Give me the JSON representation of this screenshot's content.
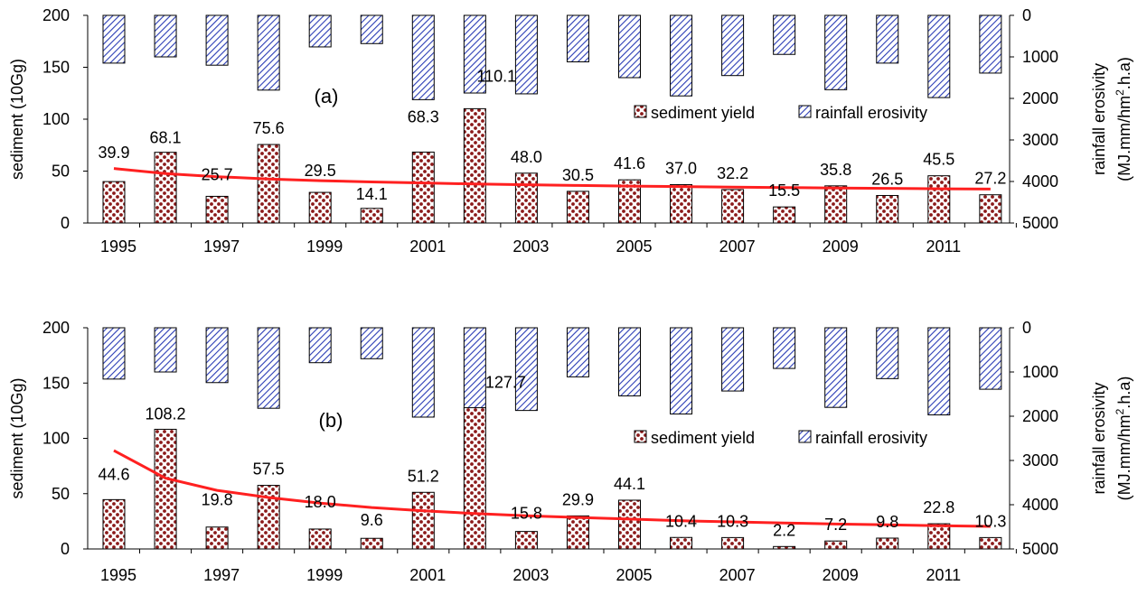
{
  "chart_data": [
    {
      "type": "bar",
      "panel_label": "(a)",
      "x": [
        1995,
        1996,
        1997,
        1998,
        1999,
        2000,
        2001,
        2002,
        2003,
        2004,
        2005,
        2006,
        2007,
        2008,
        2009,
        2010,
        2011,
        2012
      ],
      "x_tick_labels": [
        "1995",
        "1997",
        "1999",
        "2001",
        "2003",
        "2005",
        "2007",
        "2009",
        "2011"
      ],
      "series": [
        {
          "name": "sediment yield",
          "axis": "left",
          "style": "red dotted bars",
          "values": [
            39.9,
            68.1,
            25.7,
            75.6,
            29.5,
            14.1,
            68.3,
            110.1,
            48.0,
            30.5,
            41.6,
            37.0,
            32.2,
            15.5,
            35.8,
            26.5,
            45.5,
            27.2
          ],
          "labels": [
            "39.9",
            "68.1",
            "25.7",
            "75.6",
            "29.5",
            "14.1",
            "68.3",
            "110.1",
            "48.0",
            "30.5",
            "41.6",
            "37.0",
            "32.2",
            "15.5",
            "35.8",
            "26.5",
            "45.5",
            "27.2"
          ]
        },
        {
          "name": "rainfall erosivity",
          "axis": "right",
          "style": "blue hatched bars hanging from top",
          "values": [
            1150,
            1000,
            1200,
            1800,
            760,
            680,
            2030,
            1870,
            1890,
            1120,
            1500,
            1940,
            1450,
            940,
            1790,
            1150,
            1980,
            1390
          ]
        }
      ],
      "trendline": {
        "color": "#ff2020",
        "values": [
          52.5,
          47.6,
          44.6,
          42.4,
          40.8,
          39.6,
          38.6,
          37.6,
          36.9,
          36.2,
          35.6,
          35.1,
          34.6,
          34.2,
          33.7,
          33.4,
          33.0,
          32.7
        ]
      },
      "ylabel_left": "sediment (10Gg)",
      "ylabel_right": "rainfall erosivity",
      "ylabel_right_unit_pre": "(MJ.mm/hm",
      "ylabel_right_unit_sup": "2",
      "ylabel_right_unit_post": ".h.a)",
      "ylim_left": [
        0,
        200
      ],
      "ylim_right": [
        0,
        5000
      ],
      "right_axis_inverted": true,
      "yticks_left": [
        "0",
        "50",
        "100",
        "150",
        "200"
      ],
      "yticks_right": [
        "0",
        "1000",
        "2000",
        "3000",
        "4000",
        "5000"
      ],
      "legend_placement": "right, mid-height",
      "grid": false
    },
    {
      "type": "bar",
      "panel_label": "(b)",
      "x": [
        1995,
        1996,
        1997,
        1998,
        1999,
        2000,
        2001,
        2002,
        2003,
        2004,
        2005,
        2006,
        2007,
        2008,
        2009,
        2010,
        2011,
        2012
      ],
      "x_tick_labels": [
        "1995",
        "1997",
        "1999",
        "2001",
        "2003",
        "2005",
        "2007",
        "2009",
        "2011"
      ],
      "series": [
        {
          "name": "sediment yield",
          "axis": "left",
          "style": "red dotted bars",
          "values": [
            44.6,
            108.2,
            19.8,
            57.5,
            18.0,
            9.6,
            51.2,
            127.7,
            15.8,
            29.9,
            44.1,
            10.4,
            10.3,
            2.2,
            7.2,
            9.8,
            22.8,
            10.3
          ],
          "labels": [
            "44.6",
            "108.2",
            "19.8",
            "57.5",
            "18.0",
            "9.6",
            "51.2",
            "127.7",
            "15.8",
            "29.9",
            "44.1",
            "10.4",
            "10.3",
            "2.2",
            "7.2",
            "9.8",
            "22.8",
            "10.3"
          ]
        },
        {
          "name": "rainfall erosivity",
          "axis": "right",
          "style": "blue hatched bars hanging from top",
          "values": [
            1160,
            1000,
            1240,
            1820,
            790,
            700,
            2020,
            1870,
            1870,
            1110,
            1540,
            1950,
            1430,
            920,
            1800,
            1150,
            1970,
            1390
          ]
        }
      ],
      "trendline": {
        "color": "#ff2020",
        "values": [
          89,
          64,
          53,
          46.5,
          41.5,
          37.5,
          34.5,
          32,
          30,
          28.5,
          27,
          25.5,
          24.5,
          23.5,
          22.5,
          21.8,
          21.0,
          20.4
        ]
      },
      "ylabel_left": "sediment (10Gg)",
      "ylabel_right": "rainfall erosivity",
      "ylabel_right_unit_pre": "(MJ.mm/hm",
      "ylabel_right_unit_sup": "2",
      "ylabel_right_unit_post": ".h.a)",
      "ylim_left": [
        0,
        200
      ],
      "ylim_right": [
        0,
        5000
      ],
      "right_axis_inverted": true,
      "yticks_left": [
        "0",
        "50",
        "100",
        "150",
        "200"
      ],
      "yticks_right": [
        "0",
        "1000",
        "2000",
        "3000",
        "4000",
        "5000"
      ],
      "legend_placement": "right, mid-height",
      "grid": false
    }
  ],
  "colors": {
    "sediment_fill": "#8b1a1a",
    "sediment_bg": "#ffffff",
    "erosivity_stripe": "#2a3cb5",
    "trendline": "#ff2020"
  }
}
